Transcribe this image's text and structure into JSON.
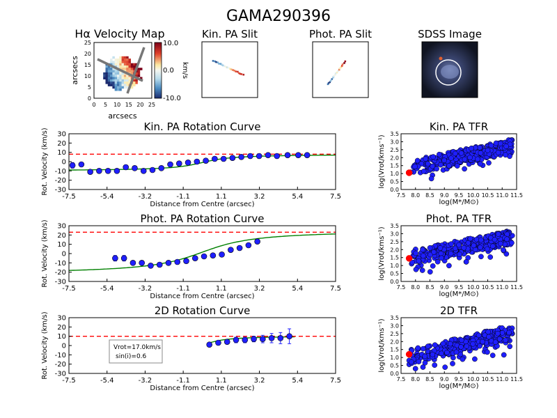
{
  "figure": {
    "title": "GAMA290396",
    "top_panels": {
      "velocity_map": {
        "title_prefix": "H",
        "title_symbol": "α",
        "title_suffix": " Velocity Map",
        "xlabel": "arcsecs",
        "ylabel": "arcsecs",
        "ticks": [
          "0",
          "5",
          "10",
          "15",
          "20",
          "25"
        ],
        "colorbar_ticks": [
          "10.0",
          "0.0",
          "-10.0"
        ],
        "colorbar_label": "km/s"
      },
      "kin_slit": {
        "title": "Kin. PA Slit"
      },
      "phot_slit": {
        "title": "Phot. PA Slit"
      },
      "sdss": {
        "title": "SDSS Image"
      }
    },
    "tfr_axes": {
      "xticks": [
        "7.5",
        "8.0",
        "8.5",
        "9.0",
        "9.5",
        "10.0",
        "10.5",
        "11.0",
        "11.5"
      ],
      "yticks": [
        "0.0",
        "0.5",
        "1.0",
        "1.5",
        "2.0",
        "2.5",
        "3.0",
        "3.5"
      ],
      "xlabel": "log(M*/M⊙)",
      "ylabel": "log(Vrot/kms⁻¹)"
    },
    "rc_axes": {
      "xticks": [
        "-7.5",
        "-5.4",
        "-3.2",
        "-1.1",
        "1.1",
        "3.2",
        "5.4",
        "7.5"
      ],
      "yticks": [
        "30",
        "20",
        "10",
        "0",
        "-10",
        "-20",
        "-30"
      ],
      "xlabel": "Distance from Centre (arcsec)",
      "ylabel": "Rot. Velocity (km/s)"
    },
    "annotation": {
      "vrot": "Vrot=17.0km/s",
      "sini": "sin(i)=0.6"
    }
  },
  "colors": {
    "points": "#1f1fff",
    "point_edge": "#000000",
    "model": "#008000",
    "vmax_line": "#ff0000",
    "highlight": "#ff0000"
  },
  "chart_data": [
    {
      "type": "scatter",
      "title": "Kin. PA Rotation Curve",
      "xlabel": "Distance from Centre (arcsec)",
      "ylabel": "Rot. Velocity (km/s)",
      "xlim": [
        -7.5,
        7.5
      ],
      "ylim": [
        -30,
        30
      ],
      "vmax_dashed": 8,
      "points": [
        [
          -7.3,
          -4,
          3
        ],
        [
          -6.8,
          -3,
          2
        ],
        [
          -6.3,
          -11,
          2
        ],
        [
          -5.8,
          -10,
          2
        ],
        [
          -5.3,
          -10,
          2
        ],
        [
          -4.8,
          -10,
          2
        ],
        [
          -4.3,
          -6,
          2
        ],
        [
          -3.8,
          -7,
          2
        ],
        [
          -3.3,
          -10,
          2
        ],
        [
          -2.8,
          -9,
          2
        ],
        [
          -2.3,
          -7,
          2
        ],
        [
          -1.8,
          -3,
          2
        ],
        [
          -1.3,
          -2,
          2
        ],
        [
          -0.8,
          -1,
          2
        ],
        [
          -0.3,
          0,
          2
        ],
        [
          0.2,
          1,
          2
        ],
        [
          0.7,
          3,
          2
        ],
        [
          1.2,
          3,
          2
        ],
        [
          1.7,
          4,
          2
        ],
        [
          2.2,
          5,
          2
        ],
        [
          2.7,
          6,
          2
        ],
        [
          3.2,
          6,
          2
        ],
        [
          3.7,
          7,
          2
        ],
        [
          4.2,
          6,
          2
        ],
        [
          4.8,
          7,
          2
        ],
        [
          5.4,
          7,
          2
        ],
        [
          5.9,
          7,
          2
        ]
      ],
      "model": {
        "vmax": 9,
        "rt": 1.3,
        "offset": -1.0,
        "x_from": -7.5,
        "x_to": 7.5
      }
    },
    {
      "type": "scatter",
      "title": "Phot. PA Rotation Curve",
      "xlabel": "Distance from Centre (arcsec)",
      "ylabel": "Rot. Velocity (km/s)",
      "xlim": [
        -7.5,
        7.5
      ],
      "ylim": [
        -30,
        30
      ],
      "vmax_dashed": 23,
      "points": [
        [
          -4.9,
          -5,
          3
        ],
        [
          -4.4,
          -5,
          3
        ],
        [
          -3.9,
          -10,
          2
        ],
        [
          -3.4,
          -10,
          2
        ],
        [
          -2.9,
          -13,
          2
        ],
        [
          -2.4,
          -12,
          2
        ],
        [
          -1.9,
          -10,
          2
        ],
        [
          -1.4,
          -9,
          2
        ],
        [
          -0.9,
          -8,
          2
        ],
        [
          -0.4,
          -5,
          2
        ],
        [
          0.1,
          -3,
          2
        ],
        [
          0.6,
          -2,
          2
        ],
        [
          1.1,
          -1,
          2
        ],
        [
          1.6,
          4,
          2
        ],
        [
          2.1,
          6,
          2
        ],
        [
          2.6,
          9,
          2
        ],
        [
          3.1,
          13,
          2
        ]
      ],
      "model": {
        "vmax": 24,
        "rt": 2.2,
        "offset": 1.5,
        "x_from": -7.5,
        "x_to": 7.5
      }
    },
    {
      "type": "scatter",
      "title": "2D Rotation Curve",
      "xlabel": "Distance from Centre (arcsec)",
      "ylabel": "Rot. Velocity (km/s)",
      "xlim": [
        -7.5,
        7.5
      ],
      "ylim": [
        -30,
        30
      ],
      "vmax_dashed": 10,
      "points": [
        [
          0.4,
          1,
          2
        ],
        [
          0.9,
          3,
          2
        ],
        [
          1.4,
          4,
          2
        ],
        [
          1.9,
          6,
          3
        ],
        [
          2.4,
          6,
          3
        ],
        [
          2.9,
          7,
          3
        ],
        [
          3.4,
          7,
          4
        ],
        [
          3.9,
          8,
          5
        ],
        [
          4.4,
          8,
          6
        ],
        [
          4.9,
          10,
          8
        ]
      ],
      "model": {
        "vmax": 10.5,
        "rt": 0.9,
        "offset": 0,
        "x_from": 0.4,
        "x_to": 5.2
      }
    },
    {
      "type": "scatter",
      "title": "Kin. PA TFR",
      "xlim": [
        7.5,
        11.5
      ],
      "ylim": [
        0,
        3.5
      ],
      "highlight": [
        7.78,
        1.05
      ],
      "cloud": {
        "x_from": 7.75,
        "x_to": 11.35,
        "intercept": -1.6,
        "slope": 0.38,
        "seed": 11,
        "count": 300
      }
    },
    {
      "type": "scatter",
      "title": "Phot. PA TFR",
      "xlim": [
        7.5,
        11.5
      ],
      "ylim": [
        0,
        3.5
      ],
      "highlight": [
        7.78,
        1.45
      ],
      "cloud": {
        "x_from": 7.75,
        "x_to": 11.35,
        "intercept": -1.3,
        "slope": 0.36,
        "seed": 29,
        "count": 320
      }
    },
    {
      "type": "scatter",
      "title": "2D TFR",
      "xlim": [
        7.5,
        11.5
      ],
      "ylim": [
        0,
        3.5
      ],
      "highlight": [
        7.78,
        1.2
      ],
      "cloud": {
        "x_from": 7.75,
        "x_to": 11.35,
        "intercept": -2.4,
        "slope": 0.44,
        "seed": 47,
        "count": 300
      }
    }
  ]
}
